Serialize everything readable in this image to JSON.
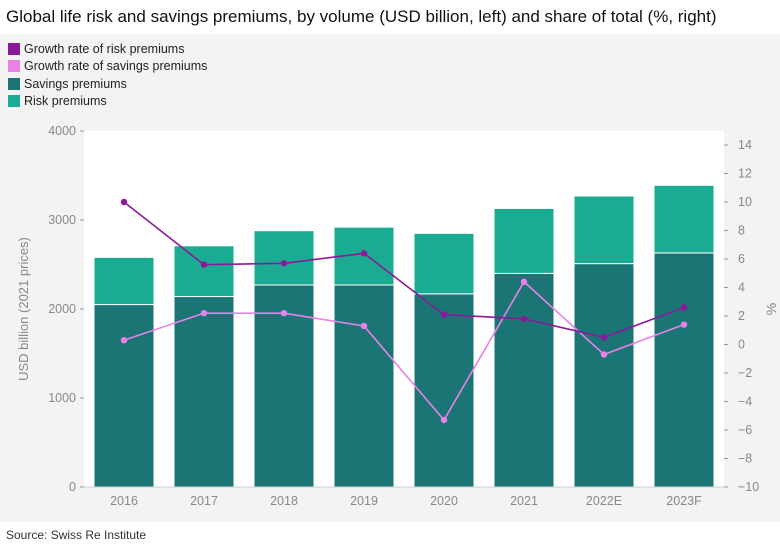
{
  "title": "Global life risk and savings premiums, by volume (USD billion, left) and share of total (%, right)",
  "source": "Source: Swiss Re Institute",
  "chart_data": {
    "type": "bar",
    "stacked": true,
    "categories": [
      "2016",
      "2017",
      "2018",
      "2019",
      "2020",
      "2021",
      "2022E",
      "2023F"
    ],
    "ylabel": "USD billion (2021 prices)",
    "ylabel_right": "%",
    "ylim": [
      0,
      4000
    ],
    "yticks": [
      "0",
      "1000",
      "2000",
      "3000",
      "4000"
    ],
    "ylim_right": [
      -10,
      14
    ],
    "yticks_right": [
      "−10",
      "−8",
      "−6",
      "−4",
      "−2",
      "0",
      "2",
      "4",
      "6",
      "8",
      "10",
      "12",
      "14"
    ],
    "bar_series": [
      {
        "name": "Savings premiums",
        "color": "#1b7575",
        "values": [
          2050,
          2140,
          2270,
          2270,
          2170,
          2400,
          2510,
          2630
        ]
      },
      {
        "name": "Risk premiums",
        "color": "#1bab93",
        "values": [
          530,
          570,
          610,
          650,
          680,
          730,
          760,
          760
        ]
      }
    ],
    "line_series": [
      {
        "name": "Growth rate of risk premiums",
        "color": "#8a1a9b",
        "values": [
          10.0,
          5.6,
          5.7,
          6.4,
          2.1,
          1.8,
          0.5,
          2.6
        ]
      },
      {
        "name": "Growth rate of savings premiums",
        "color": "#e882e6",
        "values": [
          0.3,
          2.2,
          2.2,
          1.3,
          -5.3,
          4.4,
          -0.7,
          1.4
        ]
      }
    ],
    "legend": [
      {
        "label": "Growth rate of risk premiums",
        "color": "#8a1a9b"
      },
      {
        "label": "Growth rate of savings premiums",
        "color": "#e882e6"
      },
      {
        "label": "Savings premiums",
        "color": "#1b7575"
      },
      {
        "label": "Risk premiums",
        "color": "#1bab93"
      }
    ],
    "legend_position": "top-left",
    "grid": false
  }
}
